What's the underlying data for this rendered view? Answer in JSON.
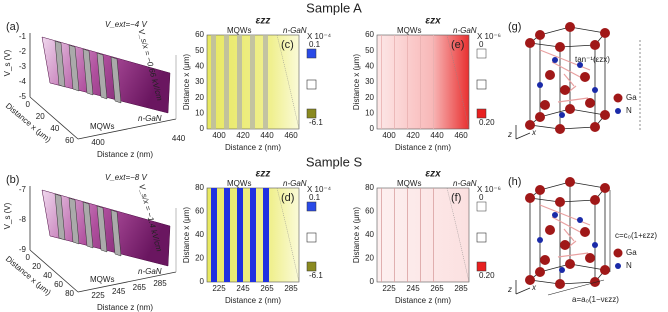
{
  "sample_a": "Sample A",
  "sample_s": "Sample S",
  "a": {
    "label": "(a)",
    "bias": "V_ext=−4 V",
    "y_title": "V_s (V)",
    "y_ticks": [
      "-1",
      "-2",
      "-3",
      "-4",
      "-5"
    ],
    "x_title": "Distance x (μm)",
    "x_ticks": [
      "0",
      "20",
      "40",
      "60"
    ],
    "z_title": "Distance z (nm)",
    "z_ticks": [
      "400",
      "440"
    ],
    "mqw": "MQWs",
    "ngan": "n-GaN",
    "slope": "V_s/x = −0.66 kV/cm"
  },
  "b": {
    "label": "(b)",
    "bias": "V_ext=−8 V",
    "y_title": "V_s (V)",
    "y_ticks": [
      "-7",
      "-8",
      "-9"
    ],
    "x_title": "Distance x (μm)",
    "x_ticks": [
      "0",
      "20",
      "40",
      "60",
      "80"
    ],
    "z_title": "Distance z (nm)",
    "z_ticks": [
      "225",
      "245",
      "265",
      "285"
    ],
    "mqw": "MQWs",
    "ngan": "n-GaN",
    "slope": "V_s/x = −1.4 kV/cm"
  },
  "c": {
    "label": "(c)",
    "symbol": "εzz",
    "mqw": "MQWs",
    "ngan": "n-GaN",
    "y_title": "Distance x (μm)",
    "y_ticks": [
      "0",
      "10",
      "20",
      "30",
      "40",
      "50",
      "60"
    ],
    "x_title": "Distance z (nm)",
    "x_ticks": [
      "400",
      "420",
      "440",
      "460"
    ],
    "scale": "X 10⁻⁴",
    "cb_max": "0.1",
    "cb_min": "-6.1"
  },
  "d": {
    "label": "(d)",
    "symbol": "εzz",
    "mqw": "MQWs",
    "ngan": "n-GaN",
    "y_title": "Distance x (μm)",
    "y_ticks": [
      "0",
      "20",
      "40",
      "60",
      "80"
    ],
    "x_title": "Distance z (nm)",
    "x_ticks": [
      "225",
      "245",
      "265",
      "285"
    ],
    "scale": "X 10⁻⁴",
    "cb_max": "0.1",
    "cb_min": "-6.1"
  },
  "e": {
    "label": "(e)",
    "symbol": "εzx",
    "mqw": "MQWs",
    "ngan": "n-GaN",
    "y_title": "Distance x (μm)",
    "y_ticks": [
      "0",
      "10",
      "20",
      "30",
      "40",
      "50",
      "60"
    ],
    "x_title": "Distance z (nm)",
    "x_ticks": [
      "400",
      "420",
      "440",
      "460"
    ],
    "scale": "X 10⁻⁶",
    "cb_max": "0",
    "cb_min": "0.20"
  },
  "f": {
    "label": "(f)",
    "symbol": "εzx",
    "mqw": "MQWs",
    "ngan": "n-GaN",
    "y_title": "Distance x (μm)",
    "y_ticks": [
      "0",
      "20",
      "40",
      "60",
      "80"
    ],
    "x_title": "Distance z (nm)",
    "x_ticks": [
      "225",
      "245",
      "265",
      "285"
    ],
    "scale": "X 10⁻⁶",
    "cb_max": "0",
    "cb_min": "0.20"
  },
  "g": {
    "label": "(g)",
    "angle": "tan⁻¹(εzx)",
    "ga": "Ga",
    "n": "N",
    "z": "z",
    "x": "x"
  },
  "h": {
    "label": "(h)",
    "c_rel": "c=c₀(1+εzz)",
    "a_rel": "a=a₀(1−νεzz)",
    "ga": "Ga",
    "n": "N",
    "z": "z",
    "x": "x"
  }
}
